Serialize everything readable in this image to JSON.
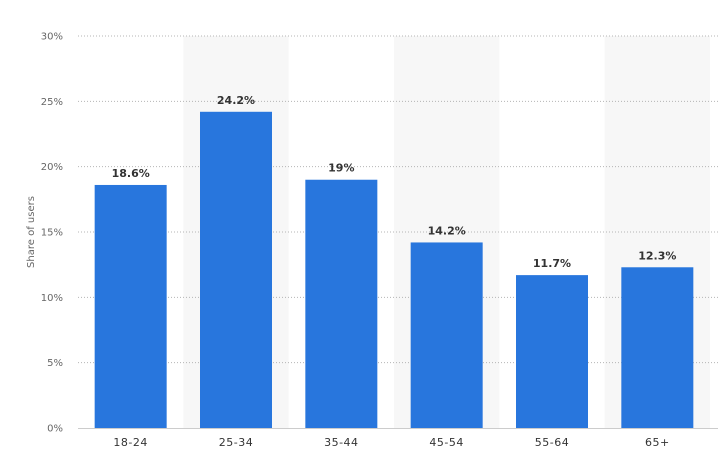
{
  "chart_data": {
    "type": "bar",
    "categories": [
      "18-24",
      "25-34",
      "35-44",
      "45-54",
      "55-64",
      "65+"
    ],
    "values": [
      18.6,
      24.2,
      19,
      14.2,
      11.7,
      12.3
    ],
    "data_labels": [
      "18.6%",
      "24.2%",
      "19%",
      "14.2%",
      "11.7%",
      "12.3%"
    ],
    "title": "",
    "xlabel": "",
    "ylabel": "Share of users",
    "ylim": [
      0,
      30
    ],
    "yticks": [
      0,
      5,
      10,
      15,
      20,
      25,
      30
    ],
    "ytick_labels": [
      "0%",
      "5%",
      "10%",
      "15%",
      "20%",
      "25%",
      "30%"
    ],
    "grid": true,
    "legend": "none",
    "bar_color": "#2876dd",
    "alt_band_color": "#f7f7f7"
  }
}
